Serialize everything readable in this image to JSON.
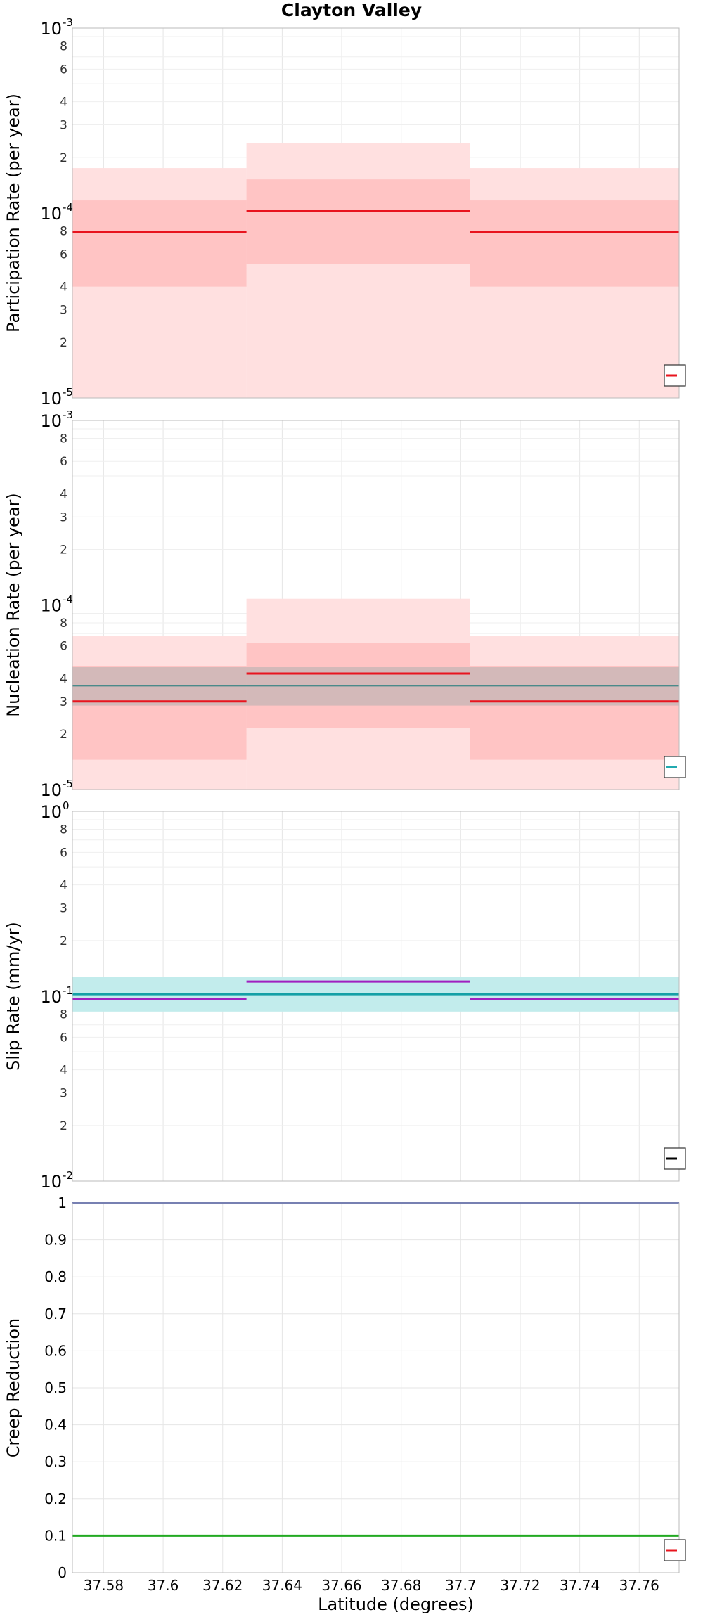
{
  "title": "Clayton Valley",
  "xlabel": "Latitude (degrees)",
  "xlim": [
    37.5695,
    37.7734
  ],
  "xticks": [
    {
      "v": 37.58,
      "label": "37.58"
    },
    {
      "v": 37.6,
      "label": "37.6"
    },
    {
      "v": 37.62,
      "label": "37.62"
    },
    {
      "v": 37.64,
      "label": "37.64"
    },
    {
      "v": 37.66,
      "label": "37.66"
    },
    {
      "v": 37.68,
      "label": "37.68"
    },
    {
      "v": 37.7,
      "label": "37.7"
    },
    {
      "v": 37.72,
      "label": "37.72"
    },
    {
      "v": 37.74,
      "label": "37.74"
    },
    {
      "v": 37.76,
      "label": "37.76"
    }
  ],
  "chart_data": [
    {
      "type": "line",
      "id": "participation",
      "ylabel": "Participation Rate (per year)",
      "yscale": "log",
      "ylim": [
        1e-05,
        0.001
      ],
      "major_ticks": [
        {
          "mant": "10",
          "exp": "-5"
        },
        {
          "mant": "10",
          "exp": "-4"
        },
        {
          "mant": "10",
          "exp": "-3"
        }
      ],
      "minor_tick_labels": [
        "2",
        "3",
        "4",
        "6",
        "8"
      ],
      "bands": [
        {
          "x0": 37.5695,
          "x1": 37.628,
          "y0": 1e-05,
          "y1": 0.000175,
          "color": "#ffe0e0"
        },
        {
          "x0": 37.628,
          "x1": 37.703,
          "y0": 1e-05,
          "y1": 0.00024,
          "color": "#ffe0e0"
        },
        {
          "x0": 37.703,
          "x1": 37.7734,
          "y0": 1e-05,
          "y1": 0.000175,
          "color": "#ffe0e0"
        },
        {
          "x0": 37.5695,
          "x1": 37.628,
          "y0": 4e-05,
          "y1": 0.000117,
          "color": "#ffc4c4"
        },
        {
          "x0": 37.628,
          "x1": 37.703,
          "y0": 5.3e-05,
          "y1": 0.000152,
          "color": "#ffc4c4"
        },
        {
          "x0": 37.703,
          "x1": 37.7734,
          "y0": 4e-05,
          "y1": 0.000117,
          "color": "#ffc4c4"
        }
      ],
      "lines": [
        {
          "x0": 37.5695,
          "x1": 37.628,
          "y": 7.9e-05,
          "color": "#e8141e",
          "width": 3
        },
        {
          "x0": 37.628,
          "x1": 37.703,
          "y": 0.000103,
          "color": "#e8141e",
          "width": 3
        },
        {
          "x0": 37.703,
          "x1": 37.7734,
          "y": 7.9e-05,
          "color": "#e8141e",
          "width": 3
        }
      ],
      "legend_color": "#e8141e"
    },
    {
      "type": "line",
      "id": "nucleation",
      "ylabel": "Nucleation Rate (per year)",
      "yscale": "log",
      "ylim": [
        1e-05,
        0.001
      ],
      "major_ticks": [
        {
          "mant": "10",
          "exp": "-5"
        },
        {
          "mant": "10",
          "exp": "-4"
        },
        {
          "mant": "10",
          "exp": "-3"
        }
      ],
      "minor_tick_labels": [
        "2",
        "3",
        "4",
        "6",
        "8"
      ],
      "bands": [
        {
          "x0": 37.5695,
          "x1": 37.628,
          "y0": 1e-05,
          "y1": 6.8e-05,
          "color": "#ffe0e0"
        },
        {
          "x0": 37.628,
          "x1": 37.703,
          "y0": 1e-05,
          "y1": 0.000108,
          "color": "#ffe0e0"
        },
        {
          "x0": 37.703,
          "x1": 37.7734,
          "y0": 1e-05,
          "y1": 6.8e-05,
          "color": "#ffe0e0"
        },
        {
          "x0": 37.5695,
          "x1": 37.628,
          "y0": 1.45e-05,
          "y1": 4.65e-05,
          "color": "#ffc4c4"
        },
        {
          "x0": 37.628,
          "x1": 37.703,
          "y0": 2.15e-05,
          "y1": 6.2e-05,
          "color": "#ffc4c4"
        },
        {
          "x0": 37.703,
          "x1": 37.7734,
          "y0": 1.45e-05,
          "y1": 4.65e-05,
          "color": "#ffc4c4"
        },
        {
          "x0": 37.5695,
          "x1": 37.7734,
          "y0": 2.85e-05,
          "y1": 4.6e-05,
          "color": "#c4b6b6",
          "opacity": 0.75
        }
      ],
      "lines": [
        {
          "x0": 37.5695,
          "x1": 37.7734,
          "y": 3.65e-05,
          "color": "#4a8a8a",
          "width": 2
        },
        {
          "x0": 37.5695,
          "x1": 37.628,
          "y": 3e-05,
          "color": "#e8141e",
          "width": 3
        },
        {
          "x0": 37.628,
          "x1": 37.703,
          "y": 4.25e-05,
          "color": "#e8141e",
          "width": 3
        },
        {
          "x0": 37.703,
          "x1": 37.7734,
          "y": 3e-05,
          "color": "#e8141e",
          "width": 3
        }
      ],
      "legend_color": "#22aab0"
    },
    {
      "type": "line",
      "id": "slip",
      "ylabel": "Slip Rate (mm/yr)",
      "yscale": "log",
      "ylim": [
        0.01,
        1
      ],
      "major_ticks": [
        {
          "mant": "10",
          "exp": "-2"
        },
        {
          "mant": "10",
          "exp": "-1"
        },
        {
          "mant": "10",
          "exp": "0"
        }
      ],
      "minor_tick_labels": [
        "2",
        "3",
        "4",
        "6",
        "8"
      ],
      "bands": [
        {
          "x0": 37.5695,
          "x1": 37.7734,
          "y0": 0.0826,
          "y1": 0.127,
          "color": "#c2ecec"
        }
      ],
      "lines": [
        {
          "x0": 37.5695,
          "x1": 37.7734,
          "y": 0.1025,
          "color": "#14a0a6",
          "width": 3
        },
        {
          "x0": 37.5695,
          "x1": 37.628,
          "y": 0.0968,
          "color": "#a020c0",
          "width": 3
        },
        {
          "x0": 37.628,
          "x1": 37.703,
          "y": 0.12,
          "color": "#a020c0",
          "width": 3
        },
        {
          "x0": 37.703,
          "x1": 37.7734,
          "y": 0.0968,
          "color": "#a020c0",
          "width": 3
        }
      ],
      "legend_color": "#000000"
    },
    {
      "type": "line",
      "id": "creep",
      "ylabel": "Creep Reduction",
      "yscale": "linear",
      "ylim": [
        0,
        1
      ],
      "lin_ticks": [
        {
          "v": 0,
          "label": "0"
        },
        {
          "v": 0.1,
          "label": "0.1"
        },
        {
          "v": 0.2,
          "label": "0.2"
        },
        {
          "v": 0.3,
          "label": "0.3"
        },
        {
          "v": 0.4,
          "label": "0.4"
        },
        {
          "v": 0.5,
          "label": "0.5"
        },
        {
          "v": 0.6,
          "label": "0.6"
        },
        {
          "v": 0.7,
          "label": "0.7"
        },
        {
          "v": 0.8,
          "label": "0.8"
        },
        {
          "v": 0.9,
          "label": "0.9"
        },
        {
          "v": 1,
          "label": "1"
        }
      ],
      "bands": [],
      "lines": [
        {
          "x0": 37.5695,
          "x1": 37.7734,
          "y": 1.0,
          "color": "#3344aa",
          "width": 2
        },
        {
          "x0": 37.5695,
          "x1": 37.7734,
          "y": 0.1,
          "color": "#22aa22",
          "width": 3
        }
      ],
      "legend_color": "#e8141e"
    }
  ]
}
